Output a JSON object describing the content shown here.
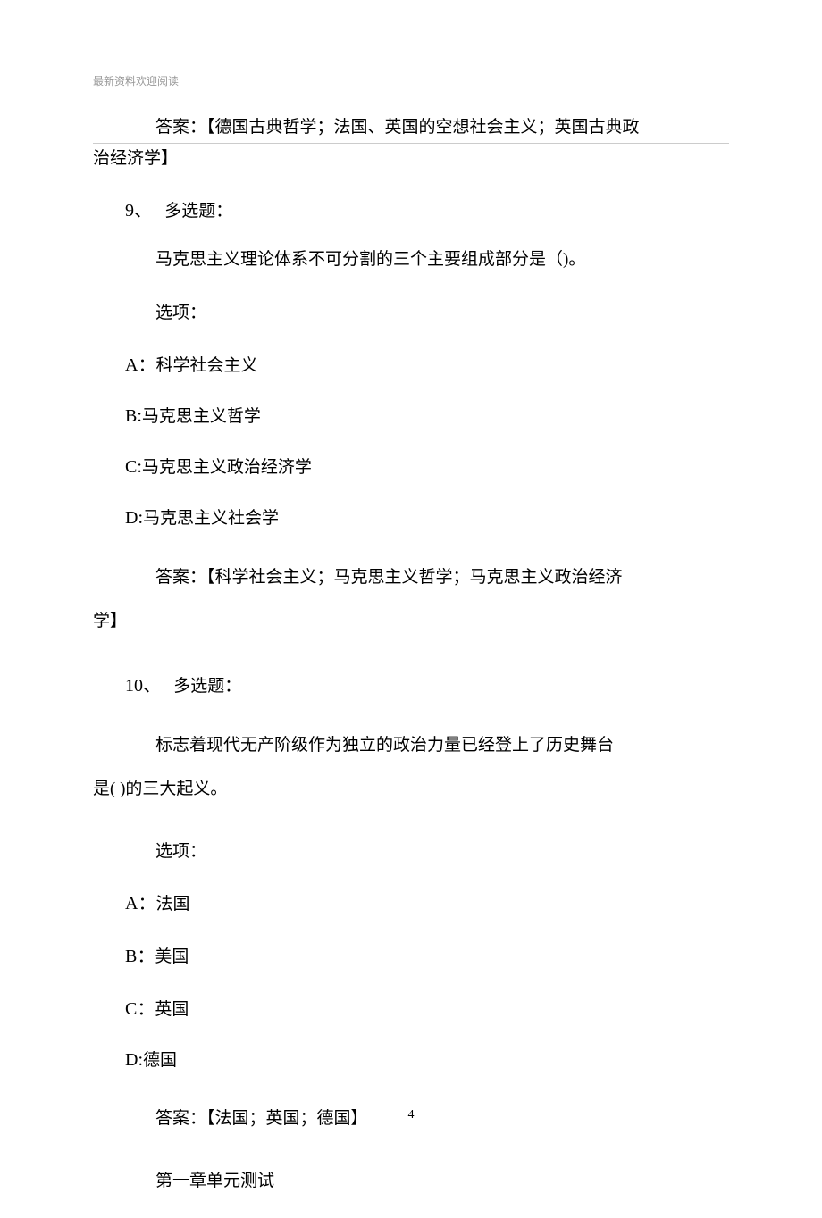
{
  "header": "最新资料欢迎阅读",
  "q8_answer_line1": "答案：【德国古典哲学；法国、英国的空想社会主义；英国古典政",
  "q8_answer_line2": "治经济学】",
  "q9": {
    "num": "9、",
    "type": "多选题：",
    "stem": "马克思主义理论体系不可分割的三个主要组成部分是（)。",
    "options_label": "选项：",
    "optA_letter": "A：",
    "optA_text": "科学社会主义",
    "optB_letter": "B:",
    "optB_text": "马克思主义哲学",
    "optC_letter": "C:",
    "optC_text": "马克思主义政治经济学",
    "optD_letter": "D:",
    "optD_text": "马克思主义社会学",
    "answer_part1": "答案：【科学社会主义；马克思主义哲学；马克思主义政治经济",
    "answer_part2": "学】"
  },
  "q10": {
    "num": "10、",
    "type": "多选题：",
    "stem_part1": "标志着现代无产阶级作为独立的政治力量已经登上了历史舞台",
    "stem_part2": "是( )的三大起义。",
    "options_label": "选项：",
    "optA_letter": "A：",
    "optA_text": "法国",
    "optB_letter": "B：",
    "optB_text": "美国",
    "optC_letter": "C：",
    "optC_text": "英国",
    "optD_letter": "D:",
    "optD_text": "德国",
    "answer": "答案：【法国；英国；德国】"
  },
  "section_title": "第一章单元测试",
  "page_number": "4"
}
